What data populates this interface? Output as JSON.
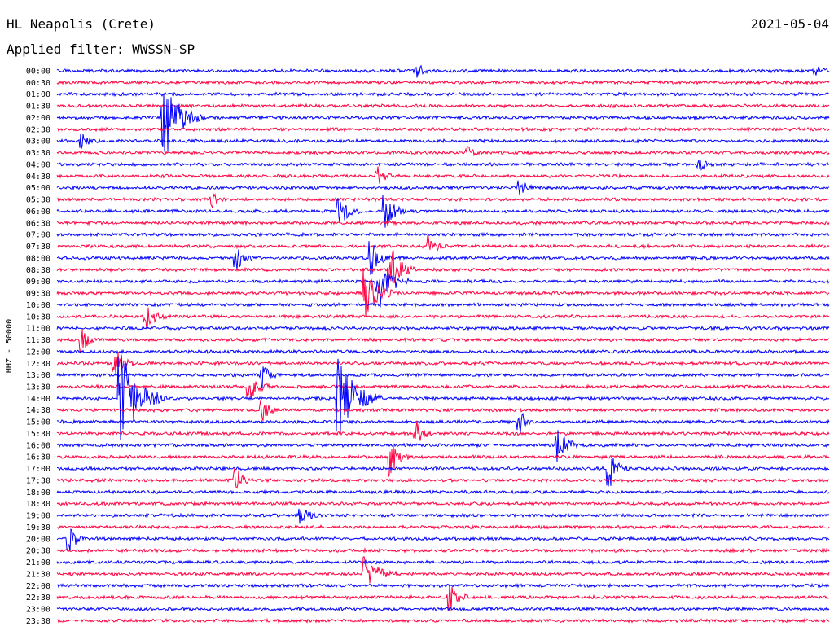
{
  "header": {
    "station": "HL Neapolis (Crete)",
    "date": "2021-05-04",
    "filter": "Applied filter: WWSSN-SP"
  },
  "chart_data": {
    "type": "line",
    "ylabel": "HHZ - 50000",
    "row_labels": [
      "00:00",
      "00:30",
      "01:00",
      "01:30",
      "02:00",
      "02:30",
      "03:00",
      "03:30",
      "04:00",
      "04:30",
      "05:00",
      "05:30",
      "06:00",
      "06:30",
      "07:00",
      "07:30",
      "08:00",
      "08:30",
      "09:00",
      "09:30",
      "10:00",
      "10:30",
      "11:00",
      "11:30",
      "12:00",
      "12:30",
      "13:00",
      "13:30",
      "14:00",
      "14:30",
      "15:00",
      "15:30",
      "16:00",
      "16:30",
      "17:00",
      "17:30",
      "18:00",
      "18:30",
      "19:00",
      "19:30",
      "20:00",
      "20:30",
      "21:00",
      "21:30",
      "22:00",
      "22:30",
      "23:00",
      "23:30"
    ],
    "row_colors": [
      "#0000ff",
      "#ff0040"
    ],
    "grid": false,
    "x_minutes_per_row": 30,
    "events": [
      {
        "row": 0,
        "minute": 14.0,
        "amplitude": 0.5,
        "duration_min": 0.8
      },
      {
        "row": 0,
        "minute": 29.5,
        "amplitude": 0.4,
        "duration_min": 0.6
      },
      {
        "row": 4,
        "minute": 4.2,
        "amplitude": 3.5,
        "duration_min": 1.5
      },
      {
        "row": 6,
        "minute": 1.0,
        "amplitude": 0.6,
        "duration_min": 0.6
      },
      {
        "row": 7,
        "minute": 16.0,
        "amplitude": 0.5,
        "duration_min": 0.6
      },
      {
        "row": 8,
        "minute": 25.0,
        "amplitude": 0.6,
        "duration_min": 0.6
      },
      {
        "row": 9,
        "minute": 12.5,
        "amplitude": 0.8,
        "duration_min": 0.6
      },
      {
        "row": 10,
        "minute": 18.0,
        "amplitude": 0.7,
        "duration_min": 0.6
      },
      {
        "row": 11,
        "minute": 6.0,
        "amplitude": 0.8,
        "duration_min": 0.6
      },
      {
        "row": 12,
        "minute": 11.0,
        "amplitude": 1.3,
        "duration_min": 0.8
      },
      {
        "row": 12,
        "minute": 12.8,
        "amplitude": 1.5,
        "duration_min": 0.8
      },
      {
        "row": 15,
        "minute": 14.5,
        "amplitude": 1.0,
        "duration_min": 0.6
      },
      {
        "row": 16,
        "minute": 12.2,
        "amplitude": 1.5,
        "duration_min": 0.8
      },
      {
        "row": 16,
        "minute": 7.0,
        "amplitude": 1.0,
        "duration_min": 0.6
      },
      {
        "row": 17,
        "minute": 13.0,
        "amplitude": 2.0,
        "duration_min": 1.0
      },
      {
        "row": 18,
        "minute": 12.5,
        "amplitude": 2.5,
        "duration_min": 1.2
      },
      {
        "row": 19,
        "minute": 12.0,
        "amplitude": 2.0,
        "duration_min": 1.2
      },
      {
        "row": 21,
        "minute": 3.5,
        "amplitude": 1.0,
        "duration_min": 0.8
      },
      {
        "row": 23,
        "minute": 1.0,
        "amplitude": 1.0,
        "duration_min": 0.6
      },
      {
        "row": 25,
        "minute": 2.3,
        "amplitude": 1.2,
        "duration_min": 0.8
      },
      {
        "row": 26,
        "minute": 8.0,
        "amplitude": 1.0,
        "duration_min": 0.6
      },
      {
        "row": 27,
        "minute": 7.5,
        "amplitude": 1.2,
        "duration_min": 0.8
      },
      {
        "row": 28,
        "minute": 2.5,
        "amplitude": 4.0,
        "duration_min": 1.8
      },
      {
        "row": 28,
        "minute": 11.0,
        "amplitude": 3.5,
        "duration_min": 1.6
      },
      {
        "row": 29,
        "minute": 8.0,
        "amplitude": 1.0,
        "duration_min": 0.6
      },
      {
        "row": 30,
        "minute": 18.0,
        "amplitude": 1.0,
        "duration_min": 0.6
      },
      {
        "row": 31,
        "minute": 14.0,
        "amplitude": 1.2,
        "duration_min": 0.6
      },
      {
        "row": 32,
        "minute": 19.5,
        "amplitude": 1.5,
        "duration_min": 0.8
      },
      {
        "row": 33,
        "minute": 13.0,
        "amplitude": 1.6,
        "duration_min": 0.8
      },
      {
        "row": 34,
        "minute": 21.5,
        "amplitude": 1.5,
        "duration_min": 0.8
      },
      {
        "row": 35,
        "minute": 7.0,
        "amplitude": 1.0,
        "duration_min": 0.6
      },
      {
        "row": 38,
        "minute": 9.5,
        "amplitude": 1.0,
        "duration_min": 0.6
      },
      {
        "row": 40,
        "minute": 0.5,
        "amplitude": 1.2,
        "duration_min": 0.6
      },
      {
        "row": 43,
        "minute": 12.0,
        "amplitude": 1.5,
        "duration_min": 1.2
      },
      {
        "row": 45,
        "minute": 15.3,
        "amplitude": 1.2,
        "duration_min": 0.8
      }
    ]
  }
}
